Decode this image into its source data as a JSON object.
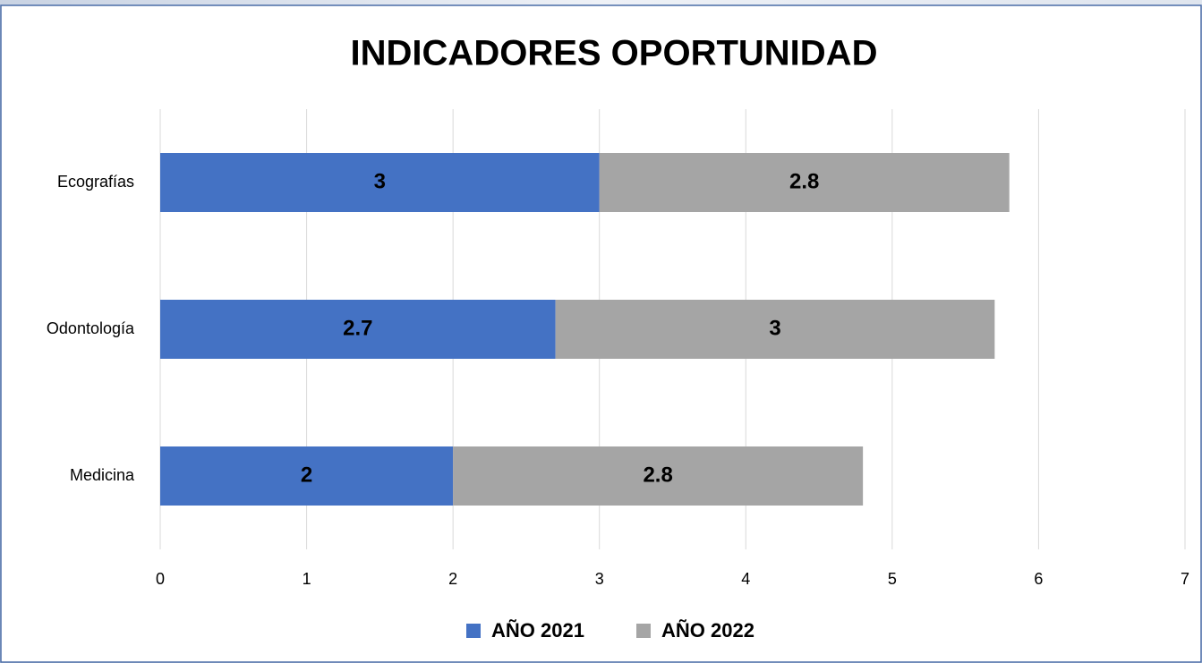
{
  "chart_data": {
    "type": "stacked-barh",
    "title": "INDICADORES OPORTUNIDAD",
    "categories": [
      "Ecografías",
      "Odontología",
      "Medicina"
    ],
    "series": [
      {
        "name": "AÑO 2021",
        "color": "#4472c4",
        "values": [
          3,
          2.7,
          2
        ]
      },
      {
        "name": "AÑO 2022",
        "color": "#a5a5a5",
        "values": [
          2.8,
          3,
          2.8
        ]
      }
    ],
    "xlim": [
      0,
      7
    ],
    "xticks": [
      0,
      1,
      2,
      3,
      4,
      5,
      6,
      7
    ],
    "grid": true,
    "legend": "bottom"
  }
}
